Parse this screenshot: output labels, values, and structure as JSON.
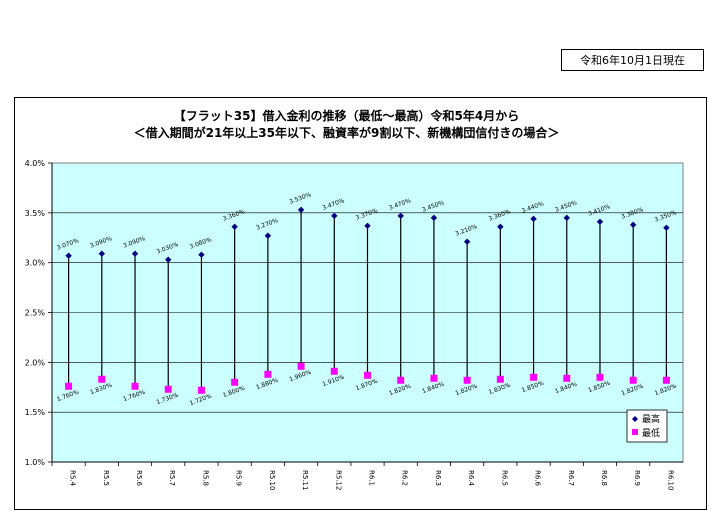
{
  "as_of": "令和6年10月1日現在",
  "chart_data": {
    "type": "line",
    "title": "【フラット35】借入金利の推移（最低～最高）令和5年4月から",
    "subtitle": "＜借入期間が21年以上35年以下、融資率が9割以下、新機構団信付きの場合＞",
    "categories": [
      "R5.4",
      "R5.5",
      "R5.6",
      "R5.7",
      "R5.8",
      "R5.9",
      "R5.10",
      "R5.11",
      "R5.12",
      "R6.1",
      "R6.2",
      "R6.3",
      "R6.4",
      "R6.5",
      "R6.6",
      "R6.7",
      "R6.8",
      "R6.9",
      "R6.10"
    ],
    "series": [
      {
        "name": "最高",
        "color": "#000080",
        "marker": "diamond",
        "values": [
          3.07,
          3.09,
          3.09,
          3.03,
          3.08,
          3.36,
          3.27,
          3.53,
          3.47,
          3.37,
          3.47,
          3.45,
          3.21,
          3.36,
          3.44,
          3.45,
          3.41,
          3.38,
          3.35
        ],
        "labels": [
          "3.070%",
          "3.090%",
          "3.090%",
          "3.030%",
          "3.080%",
          "3.360%",
          "3.270%",
          "3.530%",
          "3.470%",
          "3.370%",
          "3.470%",
          "3.450%",
          "3.210%",
          "3.360%",
          "3.440%",
          "3.450%",
          "3.410%",
          "3.380%",
          "3.350%"
        ]
      },
      {
        "name": "最低",
        "color": "#ff00ff",
        "marker": "square",
        "values": [
          1.76,
          1.83,
          1.76,
          1.73,
          1.72,
          1.8,
          1.88,
          1.96,
          1.91,
          1.87,
          1.82,
          1.84,
          1.82,
          1.83,
          1.85,
          1.84,
          1.85,
          1.82,
          1.82
        ],
        "labels": [
          "1.760%",
          "1.830%",
          "1.760%",
          "1.730%",
          "1.720%",
          "1.800%",
          "1.880%",
          "1.960%",
          "1.910%",
          "1.870%",
          "1.820%",
          "1.840%",
          "1.820%",
          "1.830%",
          "1.850%",
          "1.840%",
          "1.850%",
          "1.820%",
          "1.820%"
        ]
      }
    ],
    "ylim": [
      1.0,
      4.0
    ],
    "yticks": [
      "1.0%",
      "1.5%",
      "2.0%",
      "2.5%",
      "3.0%",
      "3.5%",
      "4.0%"
    ],
    "grid": true,
    "plot_background": "#ccffff",
    "legend_position": "bottom-right"
  }
}
